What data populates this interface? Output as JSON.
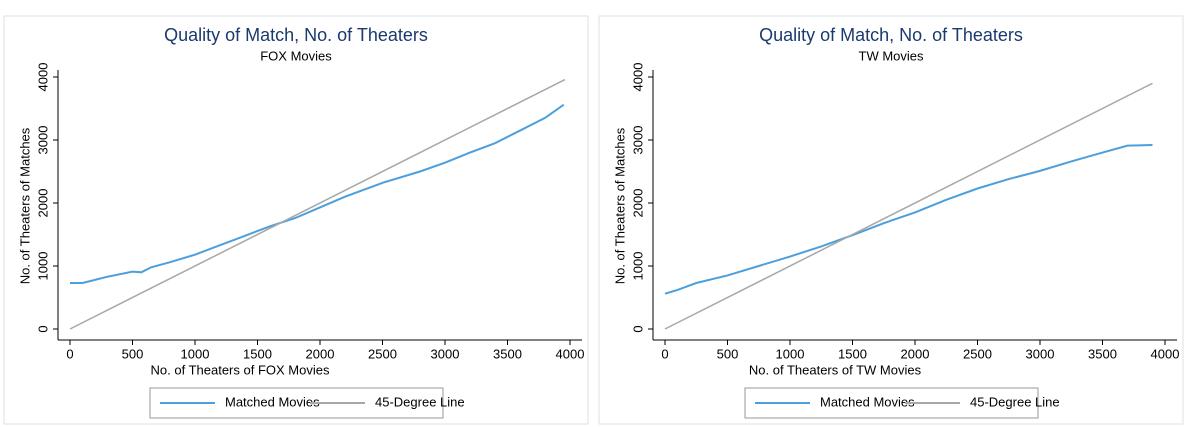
{
  "chart_data": [
    {
      "type": "line",
      "title": "Quality of Match, No. of Theaters",
      "subtitle": "FOX Movies",
      "x_label": "No. of Theaters of FOX Movies",
      "y_label": "No. of Theaters of Matches",
      "xlim": [
        0,
        4000
      ],
      "ylim": [
        0,
        4000
      ],
      "xticks": [
        0,
        500,
        1000,
        1500,
        2000,
        2500,
        3000,
        3500,
        4000
      ],
      "yticks": [
        0,
        1000,
        2000,
        3000,
        4000
      ],
      "series": [
        {
          "name": "Matched Movies",
          "color": "#4c9fdc",
          "x": [
            0,
            100,
            200,
            300,
            400,
            500,
            570,
            650,
            800,
            1000,
            1200,
            1400,
            1600,
            1800,
            2000,
            2200,
            2500,
            2800,
            3000,
            3200,
            3400,
            3600,
            3800,
            3950
          ],
          "values": [
            730,
            730,
            780,
            830,
            870,
            910,
            900,
            980,
            1060,
            1180,
            1330,
            1480,
            1630,
            1760,
            1930,
            2100,
            2320,
            2500,
            2640,
            2800,
            2950,
            3150,
            3350,
            3560
          ]
        },
        {
          "name": "45-Degree Line",
          "color": "#a8a8a8",
          "x": [
            0,
            3960
          ],
          "values": [
            0,
            3960
          ]
        }
      ]
    },
    {
      "type": "line",
      "title": "Quality of Match, No. of Theaters",
      "subtitle": "TW Movies",
      "x_label": "No. of Theaters of TW Movies",
      "y_label": "No. of Theaters of Matches",
      "xlim": [
        0,
        4000
      ],
      "ylim": [
        0,
        4000
      ],
      "xticks": [
        0,
        500,
        1000,
        1500,
        2000,
        2500,
        3000,
        3500,
        4000
      ],
      "yticks": [
        0,
        1000,
        2000,
        3000,
        4000
      ],
      "series": [
        {
          "name": "Matched Movies",
          "color": "#4c9fdc",
          "x": [
            0,
            100,
            250,
            500,
            750,
            1000,
            1250,
            1500,
            1750,
            2000,
            2250,
            2500,
            2750,
            3000,
            3250,
            3500,
            3700,
            3900
          ],
          "values": [
            560,
            620,
            730,
            850,
            1000,
            1150,
            1310,
            1490,
            1680,
            1850,
            2050,
            2230,
            2380,
            2510,
            2660,
            2800,
            2910,
            2920
          ]
        },
        {
          "name": "45-Degree Line",
          "color": "#a8a8a8",
          "x": [
            0,
            3900
          ],
          "values": [
            0,
            3900
          ]
        }
      ]
    }
  ]
}
